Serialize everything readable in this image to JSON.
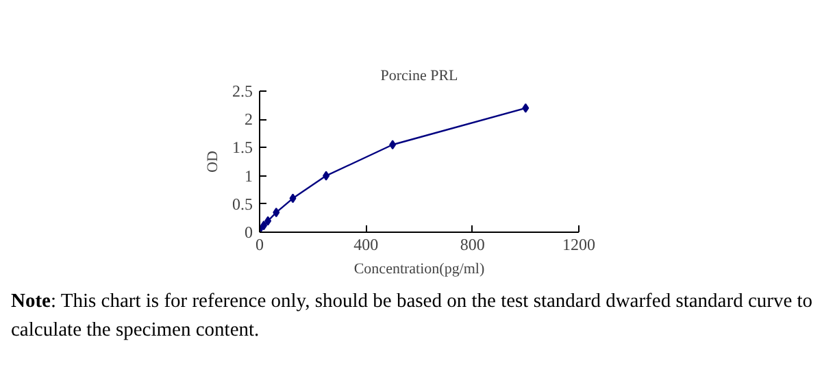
{
  "chart_data": {
    "type": "line",
    "title": "Porcine PRL",
    "xlabel": "Concentration(pg/ml)",
    "ylabel": "OD",
    "x": [
      0,
      15.6,
      31.25,
      62.5,
      125,
      250,
      500,
      1000
    ],
    "series": [
      {
        "color": "#000080",
        "values": [
          0.05,
          0.12,
          0.2,
          0.35,
          0.6,
          1.0,
          1.55,
          2.2
        ]
      }
    ],
    "xlim": [
      0,
      1200
    ],
    "xticks": [
      0,
      400,
      800,
      1200
    ],
    "ylim": [
      0,
      2.5
    ],
    "yticks": [
      0,
      0.5,
      1,
      1.5,
      2,
      2.5
    ],
    "marker": "diamond",
    "line_style": "solid",
    "grid": false,
    "annotations": [
      "Note: This chart is for reference only, should be based on the test standard dwarfed standard curve to calculate the specimen content."
    ]
  }
}
